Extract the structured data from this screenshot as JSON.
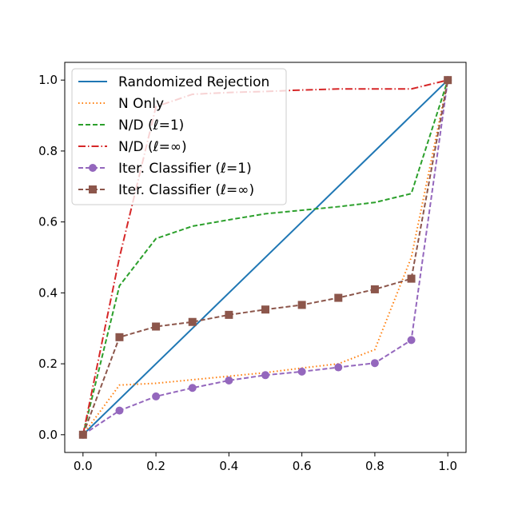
{
  "chart_data": {
    "type": "line",
    "title": "",
    "xlabel": "",
    "ylabel": "",
    "xlim": [
      -0.05,
      1.05
    ],
    "ylim": [
      -0.05,
      1.05
    ],
    "xticks": [
      "0.0",
      "0.2",
      "0.4",
      "0.6",
      "0.8",
      "1.0"
    ],
    "yticks": [
      "0.0",
      "0.2",
      "0.4",
      "0.6",
      "0.8",
      "1.0"
    ],
    "grid": false,
    "legend_position": "top-left",
    "series": [
      {
        "name": "Randomized Rejection",
        "color": "#1f77b4",
        "line_style": "solid",
        "marker": "none",
        "x": [
          0,
          1
        ],
        "y": [
          0,
          1
        ]
      },
      {
        "name": "N Only",
        "color": "#ff7f0e",
        "line_style": "dotted",
        "marker": "none",
        "x": [
          0,
          0.1,
          0.2,
          0.3,
          0.4,
          0.5,
          0.6,
          0.7,
          0.8,
          0.9,
          1.0
        ],
        "y": [
          0,
          0.14,
          0.145,
          0.155,
          0.165,
          0.175,
          0.188,
          0.2,
          0.24,
          0.5,
          1.0
        ]
      },
      {
        "name": "N/D (ℓ=1)",
        "color": "#2ca02c",
        "line_style": "dashed",
        "marker": "none",
        "x": [
          0,
          0.1,
          0.2,
          0.3,
          0.4,
          0.5,
          0.6,
          0.7,
          0.8,
          0.9,
          1.0
        ],
        "y": [
          0,
          0.42,
          0.553,
          0.588,
          0.606,
          0.623,
          0.633,
          0.643,
          0.655,
          0.68,
          1.0
        ]
      },
      {
        "name": "N/D (ℓ=∞)",
        "color": "#d62728",
        "line_style": "dashdot",
        "marker": "none",
        "x": [
          0,
          0.1,
          0.2,
          0.3,
          0.4,
          0.5,
          0.6,
          0.7,
          0.8,
          0.9,
          1.0
        ],
        "y": [
          0,
          0.5,
          0.925,
          0.96,
          0.965,
          0.968,
          0.972,
          0.975,
          0.975,
          0.975,
          1.0
        ]
      },
      {
        "name": "Iter. Classifier (ℓ=1)",
        "color": "#9467bd",
        "line_style": "dashed",
        "marker": "circle",
        "x": [
          0,
          0.1,
          0.2,
          0.3,
          0.4,
          0.5,
          0.6,
          0.7,
          0.8,
          0.9,
          1.0
        ],
        "y": [
          0,
          0.068,
          0.108,
          0.132,
          0.153,
          0.168,
          0.178,
          0.19,
          0.202,
          0.267,
          1.0
        ]
      },
      {
        "name": "Iter. Classifier (ℓ=∞)",
        "color": "#8c564b",
        "line_style": "dashed",
        "marker": "square",
        "x": [
          0,
          0.1,
          0.2,
          0.3,
          0.4,
          0.5,
          0.6,
          0.7,
          0.8,
          0.9,
          1.0
        ],
        "y": [
          0,
          0.275,
          0.305,
          0.318,
          0.338,
          0.353,
          0.366,
          0.386,
          0.41,
          0.44,
          1.0
        ]
      }
    ]
  }
}
